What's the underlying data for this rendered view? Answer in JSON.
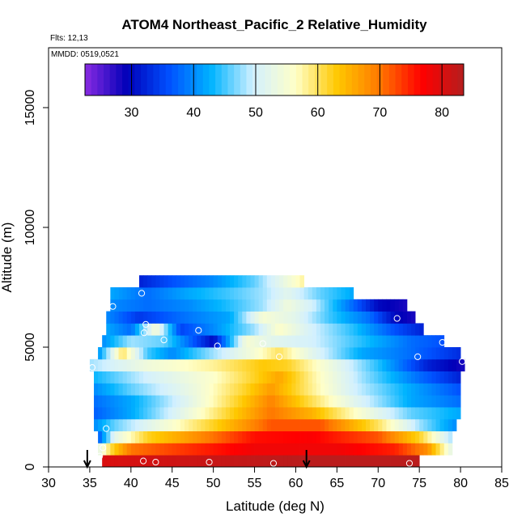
{
  "chart_data": {
    "type": "heatmap",
    "title": "ATOM4 Northeast_Pacific_2 Relative_Humidity",
    "flights_label": "Flts: 12,13",
    "mmdd_label": "MMDD: 0519,0521",
    "xlabel": "Latitude (deg N)",
    "ylabel": "Altitude (m)",
    "xlim": [
      30,
      85
    ],
    "ylim": [
      0,
      17500
    ],
    "x_ticks": [
      30,
      35,
      40,
      45,
      50,
      55,
      60,
      65,
      70,
      75,
      80,
      85
    ],
    "y_ticks": [
      0,
      5000,
      10000,
      15000
    ],
    "colorbar": {
      "range": [
        22.5,
        83.5
      ],
      "ticks": [
        30,
        40,
        50,
        60,
        70,
        80
      ],
      "colors": [
        "#8a2be2",
        "#0000b8",
        "#0050ff",
        "#00b4ff",
        "#d2f0ff",
        "#ffffc8",
        "#ffc800",
        "#ff7800",
        "#ff0000",
        "#b41e1e"
      ]
    },
    "bin_height_m": 500,
    "rows": [
      {
        "alt": 0,
        "lat_min": 36.5,
        "lat_max": 75,
        "anchors": [
          [
            36.5,
            80
          ],
          [
            60,
            83
          ],
          [
            75,
            83
          ]
        ]
      },
      {
        "alt": 500,
        "lat_min": 36,
        "lat_max": 79,
        "anchors": [
          [
            36,
            52
          ],
          [
            38,
            63
          ],
          [
            40,
            70
          ],
          [
            45,
            73
          ],
          [
            55,
            78
          ],
          [
            65,
            78
          ],
          [
            72,
            75
          ],
          [
            76,
            68
          ],
          [
            79,
            52
          ]
        ]
      },
      {
        "alt": 1000,
        "lat_min": 36,
        "lat_max": 79,
        "anchors": [
          [
            36,
            36
          ],
          [
            38,
            52
          ],
          [
            42,
            62
          ],
          [
            48,
            68
          ],
          [
            55,
            76
          ],
          [
            62,
            77
          ],
          [
            70,
            72
          ],
          [
            75,
            62
          ],
          [
            79,
            48
          ]
        ]
      },
      {
        "alt": 1500,
        "lat_min": 35.5,
        "lat_max": 79.5,
        "anchors": [
          [
            35.5,
            40
          ],
          [
            38,
            46
          ],
          [
            43,
            53
          ],
          [
            50,
            62
          ],
          [
            57,
            72
          ],
          [
            63,
            72
          ],
          [
            70,
            60
          ],
          [
            75,
            48
          ],
          [
            79.5,
            40
          ]
        ]
      },
      {
        "alt": 2000,
        "lat_min": 35.5,
        "lat_max": 80,
        "anchors": [
          [
            35.5,
            37
          ],
          [
            40,
            42
          ],
          [
            46,
            52
          ],
          [
            52,
            62
          ],
          [
            57,
            70
          ],
          [
            62,
            65
          ],
          [
            68,
            55
          ],
          [
            74,
            46
          ],
          [
            80,
            42
          ]
        ]
      },
      {
        "alt": 2500,
        "lat_min": 35.5,
        "lat_max": 80,
        "anchors": [
          [
            35.5,
            38
          ],
          [
            40,
            42
          ],
          [
            47,
            52
          ],
          [
            53,
            62
          ],
          [
            57,
            69
          ],
          [
            61,
            62
          ],
          [
            67,
            52
          ],
          [
            74,
            42
          ],
          [
            80,
            38
          ]
        ]
      },
      {
        "alt": 3000,
        "lat_min": 35.5,
        "lat_max": 80,
        "anchors": [
          [
            35.5,
            40
          ],
          [
            40,
            46
          ],
          [
            48,
            54
          ],
          [
            54,
            62
          ],
          [
            57,
            67
          ],
          [
            61,
            60
          ],
          [
            67,
            50
          ],
          [
            74,
            42
          ],
          [
            80,
            36
          ]
        ]
      },
      {
        "alt": 3500,
        "lat_min": 35.5,
        "lat_max": 80,
        "anchors": [
          [
            35.5,
            43
          ],
          [
            42,
            50
          ],
          [
            50,
            56
          ],
          [
            55,
            62
          ],
          [
            58,
            66
          ],
          [
            62,
            58
          ],
          [
            68,
            48
          ],
          [
            75,
            38
          ],
          [
            80,
            32
          ]
        ]
      },
      {
        "alt": 4000,
        "lat_min": 35,
        "lat_max": 80.5,
        "anchors": [
          [
            35,
            48
          ],
          [
            42,
            54
          ],
          [
            50,
            58
          ],
          [
            56,
            63
          ],
          [
            59,
            62
          ],
          [
            64,
            54
          ],
          [
            70,
            44
          ],
          [
            76,
            32
          ],
          [
            80.5,
            28
          ]
        ]
      },
      {
        "alt": 4500,
        "lat_min": 36,
        "lat_max": 80,
        "anchors": [
          [
            36,
            40
          ],
          [
            39,
            60
          ],
          [
            42,
            45
          ],
          [
            45,
            40
          ],
          [
            50,
            48
          ],
          [
            55,
            55
          ],
          [
            58,
            60
          ],
          [
            62,
            52
          ],
          [
            68,
            42
          ],
          [
            74,
            38
          ],
          [
            80,
            33
          ]
        ]
      },
      {
        "alt": 5000,
        "lat_min": 36.5,
        "lat_max": 78,
        "anchors": [
          [
            36.5,
            40
          ],
          [
            40,
            48
          ],
          [
            44,
            46
          ],
          [
            50,
            30
          ],
          [
            54,
            55
          ],
          [
            57,
            52
          ],
          [
            62,
            50
          ],
          [
            68,
            44
          ],
          [
            74,
            38
          ],
          [
            78,
            36
          ]
        ]
      },
      {
        "alt": 5500,
        "lat_min": 37,
        "lat_max": 75.5,
        "anchors": [
          [
            37,
            42
          ],
          [
            40,
            38
          ],
          [
            43,
            55
          ],
          [
            46,
            35
          ],
          [
            50,
            40
          ],
          [
            55,
            48
          ],
          [
            58,
            56
          ],
          [
            62,
            50
          ],
          [
            67,
            44
          ],
          [
            72,
            36
          ],
          [
            75.5,
            32
          ]
        ]
      },
      {
        "alt": 6000,
        "lat_min": 37,
        "lat_max": 74.5,
        "anchors": [
          [
            37,
            40
          ],
          [
            41,
            34
          ],
          [
            46,
            38
          ],
          [
            52,
            42
          ],
          [
            56,
            55
          ],
          [
            60,
            52
          ],
          [
            64,
            45
          ],
          [
            69,
            38
          ],
          [
            72,
            30
          ],
          [
            74.5,
            28
          ]
        ]
      },
      {
        "alt": 6500,
        "lat_min": 37.5,
        "lat_max": 73.5,
        "anchors": [
          [
            37.5,
            40
          ],
          [
            42,
            38
          ],
          [
            47,
            40
          ],
          [
            52,
            44
          ],
          [
            56,
            48
          ],
          [
            59,
            54
          ],
          [
            62,
            50
          ],
          [
            66,
            40
          ],
          [
            70,
            30
          ],
          [
            73.5,
            28
          ]
        ]
      },
      {
        "alt": 7000,
        "lat_min": 37.5,
        "lat_max": 67,
        "anchors": [
          [
            37.5,
            42
          ],
          [
            42,
            38
          ],
          [
            47,
            42
          ],
          [
            52,
            45
          ],
          [
            56,
            48
          ],
          [
            59,
            52
          ],
          [
            63,
            46
          ],
          [
            67,
            42
          ]
        ]
      },
      {
        "alt": 7500,
        "lat_min": 41,
        "lat_max": 61,
        "anchors": [
          [
            41,
            32
          ],
          [
            45,
            36
          ],
          [
            50,
            40
          ],
          [
            55,
            46
          ],
          [
            58,
            52
          ],
          [
            61,
            58
          ]
        ]
      }
    ],
    "sample_points": [
      [
        41.5,
        250
      ],
      [
        43,
        200
      ],
      [
        49.5,
        200
      ],
      [
        57.3,
        150
      ],
      [
        73.8,
        150
      ],
      [
        36.2,
        450
      ],
      [
        36.6,
        800
      ],
      [
        37,
        1600
      ],
      [
        35.3,
        4150
      ],
      [
        37.8,
        6700
      ],
      [
        41.3,
        7250
      ],
      [
        41.8,
        5950
      ],
      [
        41.6,
        5600
      ],
      [
        44,
        5300
      ],
      [
        48.2,
        5700
      ],
      [
        50.5,
        5050
      ],
      [
        56,
        5150
      ],
      [
        58,
        4600
      ],
      [
        72.3,
        6200
      ],
      [
        74.8,
        4600
      ],
      [
        77.8,
        5200
      ],
      [
        80.2,
        4400
      ]
    ],
    "flight_markers_lat": [
      34.7,
      61.3
    ]
  }
}
